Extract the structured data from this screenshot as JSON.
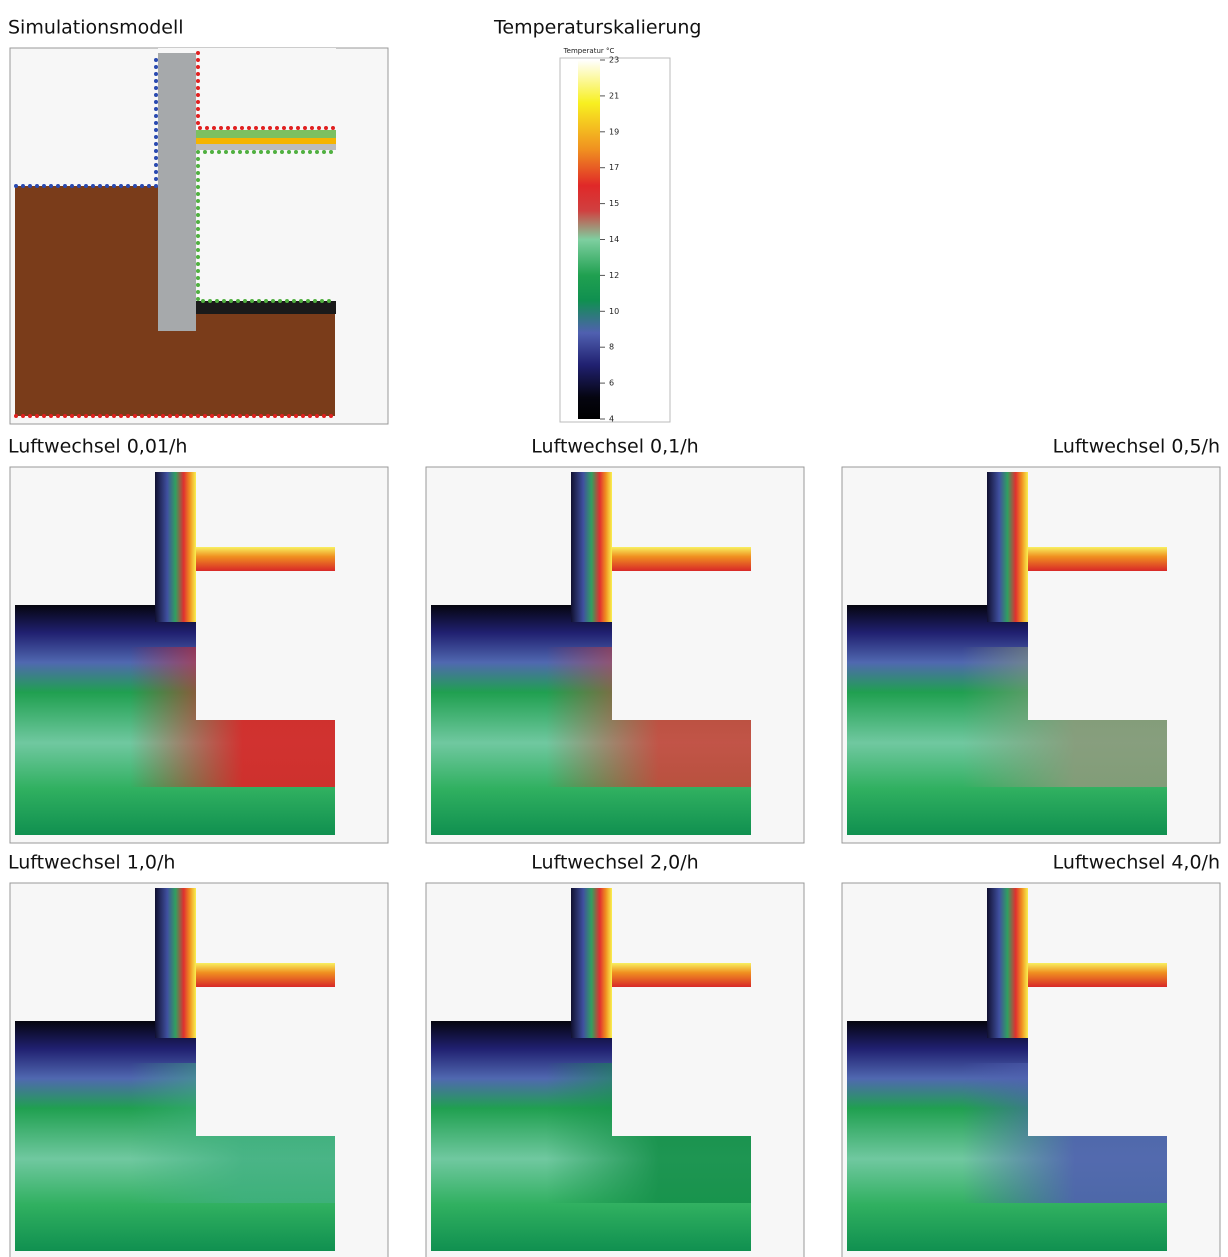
{
  "model": {
    "title": "Simulationsmodell"
  },
  "scale": {
    "title": "Temperaturskalierung",
    "unit_label": "Temperatur °C",
    "ticks": [
      23,
      21,
      19,
      17,
      15,
      14,
      12,
      10,
      8,
      6,
      4
    ]
  },
  "panels": [
    {
      "label": "Luftwechsel 0,01/h"
    },
    {
      "label": "Luftwechsel 0,1/h"
    },
    {
      "label": "Luftwechsel 0,5/h"
    },
    {
      "label": "Luftwechsel 1,0/h"
    },
    {
      "label": "Luftwechsel 2,0/h"
    },
    {
      "label": "Luftwechsel 4,0/h"
    }
  ]
}
